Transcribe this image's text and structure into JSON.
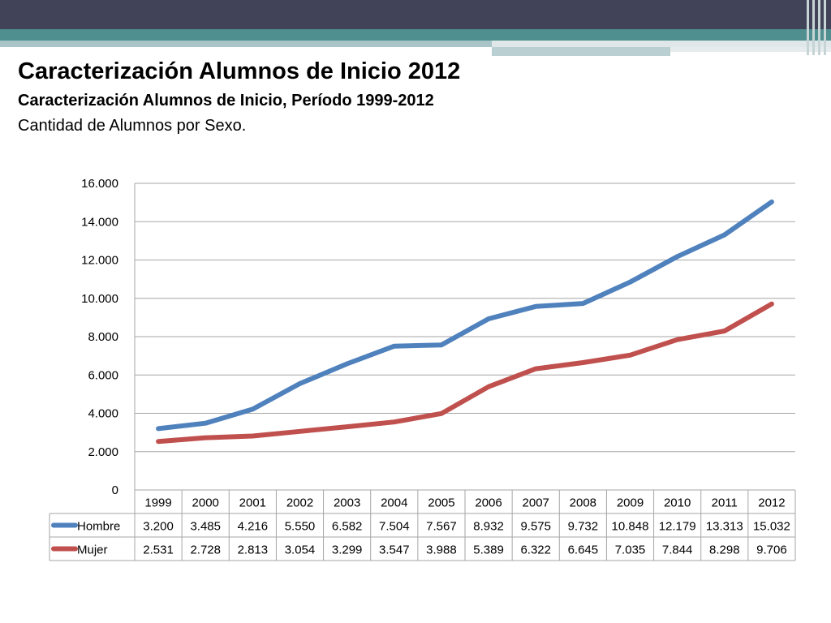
{
  "slide": {
    "title": "Caracterización Alumnos de Inicio 2012",
    "subtitle": "Caracterización Alumnos de Inicio, Período 1999-2012",
    "caption": "Cantidad de Alumnos por Sexo."
  },
  "chart_data": {
    "type": "line",
    "x": [
      "1999",
      "2000",
      "2001",
      "2002",
      "2003",
      "2004",
      "2005",
      "2006",
      "2007",
      "2008",
      "2009",
      "2010",
      "2011",
      "2012"
    ],
    "ylim": [
      0,
      16000
    ],
    "yticks": [
      0,
      2000,
      4000,
      6000,
      8000,
      10000,
      12000,
      14000,
      16000
    ],
    "ytick_labels": [
      "0",
      "2.000",
      "4.000",
      "6.000",
      "8.000",
      "10.000",
      "12.000",
      "14.000",
      "16.000"
    ],
    "grid": true,
    "legend": "data-table",
    "series": [
      {
        "name": "Hombre",
        "color": "#4f81bd",
        "values": [
          3200,
          3485,
          4216,
          5550,
          6582,
          7504,
          7567,
          8932,
          9575,
          9732,
          10848,
          12179,
          13313,
          15032
        ],
        "labels": [
          "3.200",
          "3.485",
          "4.216",
          "5.550",
          "6.582",
          "7.504",
          "7.567",
          "8.932",
          "9.575",
          "9.732",
          "10.848",
          "12.179",
          "13.313",
          "15.032"
        ]
      },
      {
        "name": "Mujer",
        "color": "#c0504d",
        "values": [
          2531,
          2728,
          2813,
          3054,
          3299,
          3547,
          3988,
          5389,
          6322,
          6645,
          7035,
          7844,
          8298,
          9706
        ],
        "labels": [
          "2.531",
          "2.728",
          "2.813",
          "3.054",
          "3.299",
          "3.547",
          "3.988",
          "5.389",
          "6.322",
          "6.645",
          "7.035",
          "7.844",
          "8.298",
          "9.706"
        ]
      }
    ]
  }
}
